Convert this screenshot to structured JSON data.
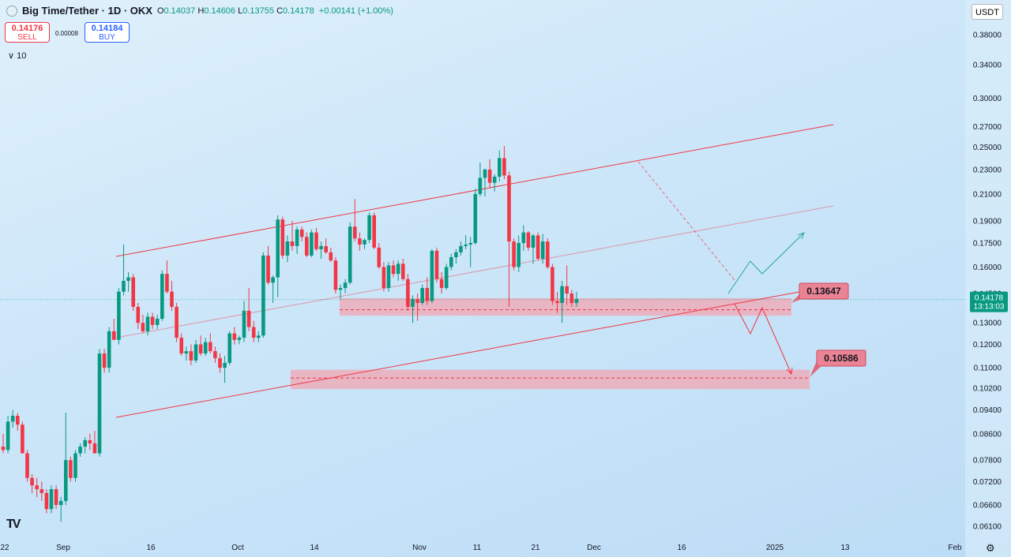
{
  "header": {
    "symbol": "Big Time/Tether · 1D · OKX",
    "o_label": "O",
    "o": "0.14037",
    "h_label": "H",
    "h": "0.14606",
    "l_label": "L",
    "l": "0.13755",
    "c_label": "C",
    "c": "0.14178",
    "change": "+0.00141 (+1.00%)"
  },
  "trade": {
    "sell_price": "0.14176",
    "sell_label": "SELL",
    "spread": "0.00008",
    "buy_price": "0.14184",
    "buy_label": "BUY"
  },
  "indicator_toggle": "∨ 10",
  "currency": "USDT",
  "colors": {
    "up": "#089981",
    "down": "#f23645",
    "channel": "#f23645",
    "zone": "#f2a5b1",
    "arrow_up": "#26a69a"
  },
  "chart_data": {
    "type": "candlestick",
    "y_scale": "log",
    "ylim": [
      0.0587,
      0.4323
    ],
    "y_ticks": [
      "0.38000",
      "0.34000",
      "0.30000",
      "0.27000",
      "0.25000",
      "0.23000",
      "0.21000",
      "0.19000",
      "0.17500",
      "0.16000",
      "0.14500",
      "0.13000",
      "0.12000",
      "0.11000",
      "0.10200",
      "0.09400",
      "0.08600",
      "0.07800",
      "0.07200",
      "0.06600",
      "0.06100"
    ],
    "x_labels": [
      "22",
      "Sep",
      "16",
      "Oct",
      "14",
      "Nov",
      "11",
      "21",
      "Dec",
      "16",
      "2025",
      "13",
      "Feb"
    ],
    "last_price_label": "0.14178",
    "countdown": "13:13:03",
    "levels": [
      {
        "label": "0.13647",
        "value": 0.13647,
        "zone": [
          0.1335,
          0.1425
        ]
      },
      {
        "label": "0.10586",
        "value": 0.10586,
        "zone": [
          0.1016,
          0.1092
        ]
      }
    ],
    "candles": [
      {
        "o": 0.082,
        "h": 0.086,
        "l": 0.08,
        "c": 0.081
      },
      {
        "o": 0.081,
        "h": 0.092,
        "l": 0.08,
        "c": 0.09
      },
      {
        "o": 0.09,
        "h": 0.094,
        "l": 0.088,
        "c": 0.092
      },
      {
        "o": 0.092,
        "h": 0.093,
        "l": 0.087,
        "c": 0.089
      },
      {
        "o": 0.089,
        "h": 0.09,
        "l": 0.08,
        "c": 0.08
      },
      {
        "o": 0.08,
        "h": 0.081,
        "l": 0.072,
        "c": 0.073
      },
      {
        "o": 0.073,
        "h": 0.074,
        "l": 0.069,
        "c": 0.071
      },
      {
        "o": 0.071,
        "h": 0.073,
        "l": 0.068,
        "c": 0.07
      },
      {
        "o": 0.07,
        "h": 0.072,
        "l": 0.067,
        "c": 0.069
      },
      {
        "o": 0.069,
        "h": 0.07,
        "l": 0.064,
        "c": 0.065
      },
      {
        "o": 0.065,
        "h": 0.071,
        "l": 0.064,
        "c": 0.07
      },
      {
        "o": 0.07,
        "h": 0.071,
        "l": 0.065,
        "c": 0.066
      },
      {
        "o": 0.066,
        "h": 0.068,
        "l": 0.062,
        "c": 0.067
      },
      {
        "o": 0.067,
        "h": 0.093,
        "l": 0.066,
        "c": 0.078
      },
      {
        "o": 0.078,
        "h": 0.079,
        "l": 0.072,
        "c": 0.073
      },
      {
        "o": 0.073,
        "h": 0.081,
        "l": 0.072,
        "c": 0.08
      },
      {
        "o": 0.08,
        "h": 0.083,
        "l": 0.079,
        "c": 0.082
      },
      {
        "o": 0.082,
        "h": 0.085,
        "l": 0.08,
        "c": 0.084
      },
      {
        "o": 0.084,
        "h": 0.086,
        "l": 0.081,
        "c": 0.083
      },
      {
        "o": 0.083,
        "h": 0.087,
        "l": 0.08,
        "c": 0.08
      },
      {
        "o": 0.08,
        "h": 0.118,
        "l": 0.079,
        "c": 0.116
      },
      {
        "o": 0.116,
        "h": 0.118,
        "l": 0.108,
        "c": 0.11
      },
      {
        "o": 0.11,
        "h": 0.128,
        "l": 0.108,
        "c": 0.126
      },
      {
        "o": 0.126,
        "h": 0.132,
        "l": 0.122,
        "c": 0.122
      },
      {
        "o": 0.122,
        "h": 0.148,
        "l": 0.12,
        "c": 0.146
      },
      {
        "o": 0.146,
        "h": 0.174,
        "l": 0.144,
        "c": 0.152
      },
      {
        "o": 0.152,
        "h": 0.157,
        "l": 0.146,
        "c": 0.154
      },
      {
        "o": 0.154,
        "h": 0.156,
        "l": 0.136,
        "c": 0.138
      },
      {
        "o": 0.138,
        "h": 0.14,
        "l": 0.127,
        "c": 0.13
      },
      {
        "o": 0.13,
        "h": 0.134,
        "l": 0.125,
        "c": 0.126
      },
      {
        "o": 0.126,
        "h": 0.135,
        "l": 0.124,
        "c": 0.133
      },
      {
        "o": 0.133,
        "h": 0.135,
        "l": 0.127,
        "c": 0.129
      },
      {
        "o": 0.129,
        "h": 0.134,
        "l": 0.127,
        "c": 0.132
      },
      {
        "o": 0.132,
        "h": 0.158,
        "l": 0.131,
        "c": 0.156
      },
      {
        "o": 0.156,
        "h": 0.164,
        "l": 0.145,
        "c": 0.146
      },
      {
        "o": 0.146,
        "h": 0.152,
        "l": 0.136,
        "c": 0.138
      },
      {
        "o": 0.138,
        "h": 0.14,
        "l": 0.121,
        "c": 0.123
      },
      {
        "o": 0.123,
        "h": 0.125,
        "l": 0.115,
        "c": 0.116
      },
      {
        "o": 0.116,
        "h": 0.119,
        "l": 0.113,
        "c": 0.117
      },
      {
        "o": 0.117,
        "h": 0.12,
        "l": 0.111,
        "c": 0.113
      },
      {
        "o": 0.113,
        "h": 0.122,
        "l": 0.112,
        "c": 0.12
      },
      {
        "o": 0.12,
        "h": 0.124,
        "l": 0.115,
        "c": 0.116
      },
      {
        "o": 0.116,
        "h": 0.123,
        "l": 0.115,
        "c": 0.121
      },
      {
        "o": 0.121,
        "h": 0.125,
        "l": 0.116,
        "c": 0.117
      },
      {
        "o": 0.117,
        "h": 0.119,
        "l": 0.112,
        "c": 0.114
      },
      {
        "o": 0.114,
        "h": 0.116,
        "l": 0.108,
        "c": 0.11
      },
      {
        "o": 0.11,
        "h": 0.115,
        "l": 0.104,
        "c": 0.112
      },
      {
        "o": 0.112,
        "h": 0.126,
        "l": 0.111,
        "c": 0.125
      },
      {
        "o": 0.125,
        "h": 0.128,
        "l": 0.12,
        "c": 0.122
      },
      {
        "o": 0.122,
        "h": 0.124,
        "l": 0.12,
        "c": 0.123
      },
      {
        "o": 0.123,
        "h": 0.141,
        "l": 0.121,
        "c": 0.136
      },
      {
        "o": 0.136,
        "h": 0.148,
        "l": 0.126,
        "c": 0.128
      },
      {
        "o": 0.128,
        "h": 0.131,
        "l": 0.121,
        "c": 0.123
      },
      {
        "o": 0.123,
        "h": 0.126,
        "l": 0.121,
        "c": 0.124
      },
      {
        "o": 0.124,
        "h": 0.169,
        "l": 0.123,
        "c": 0.167
      },
      {
        "o": 0.167,
        "h": 0.173,
        "l": 0.15,
        "c": 0.151
      },
      {
        "o": 0.151,
        "h": 0.155,
        "l": 0.14,
        "c": 0.154
      },
      {
        "o": 0.154,
        "h": 0.194,
        "l": 0.143,
        "c": 0.191
      },
      {
        "o": 0.191,
        "h": 0.193,
        "l": 0.165,
        "c": 0.167
      },
      {
        "o": 0.167,
        "h": 0.18,
        "l": 0.163,
        "c": 0.176
      },
      {
        "o": 0.176,
        "h": 0.19,
        "l": 0.17,
        "c": 0.173
      },
      {
        "o": 0.173,
        "h": 0.186,
        "l": 0.168,
        "c": 0.184
      },
      {
        "o": 0.184,
        "h": 0.186,
        "l": 0.176,
        "c": 0.179
      },
      {
        "o": 0.179,
        "h": 0.182,
        "l": 0.166,
        "c": 0.167
      },
      {
        "o": 0.167,
        "h": 0.184,
        "l": 0.166,
        "c": 0.182
      },
      {
        "o": 0.182,
        "h": 0.185,
        "l": 0.17,
        "c": 0.171
      },
      {
        "o": 0.171,
        "h": 0.176,
        "l": 0.165,
        "c": 0.173
      },
      {
        "o": 0.173,
        "h": 0.178,
        "l": 0.168,
        "c": 0.169
      },
      {
        "o": 0.169,
        "h": 0.172,
        "l": 0.163,
        "c": 0.164
      },
      {
        "o": 0.164,
        "h": 0.166,
        "l": 0.145,
        "c": 0.147
      },
      {
        "o": 0.147,
        "h": 0.15,
        "l": 0.142,
        "c": 0.148
      },
      {
        "o": 0.148,
        "h": 0.153,
        "l": 0.145,
        "c": 0.151
      },
      {
        "o": 0.151,
        "h": 0.189,
        "l": 0.15,
        "c": 0.186
      },
      {
        "o": 0.186,
        "h": 0.206,
        "l": 0.176,
        "c": 0.178
      },
      {
        "o": 0.178,
        "h": 0.182,
        "l": 0.17,
        "c": 0.174
      },
      {
        "o": 0.174,
        "h": 0.178,
        "l": 0.171,
        "c": 0.177
      },
      {
        "o": 0.177,
        "h": 0.196,
        "l": 0.175,
        "c": 0.194
      },
      {
        "o": 0.194,
        "h": 0.196,
        "l": 0.171,
        "c": 0.172
      },
      {
        "o": 0.172,
        "h": 0.175,
        "l": 0.159,
        "c": 0.16
      },
      {
        "o": 0.16,
        "h": 0.163,
        "l": 0.146,
        "c": 0.148
      },
      {
        "o": 0.148,
        "h": 0.163,
        "l": 0.146,
        "c": 0.161
      },
      {
        "o": 0.161,
        "h": 0.164,
        "l": 0.154,
        "c": 0.156
      },
      {
        "o": 0.156,
        "h": 0.164,
        "l": 0.152,
        "c": 0.162
      },
      {
        "o": 0.162,
        "h": 0.165,
        "l": 0.152,
        "c": 0.153
      },
      {
        "o": 0.153,
        "h": 0.156,
        "l": 0.136,
        "c": 0.138
      },
      {
        "o": 0.138,
        "h": 0.144,
        "l": 0.13,
        "c": 0.142
      },
      {
        "o": 0.142,
        "h": 0.145,
        "l": 0.131,
        "c": 0.14
      },
      {
        "o": 0.14,
        "h": 0.15,
        "l": 0.139,
        "c": 0.148
      },
      {
        "o": 0.148,
        "h": 0.154,
        "l": 0.139,
        "c": 0.141
      },
      {
        "o": 0.141,
        "h": 0.171,
        "l": 0.14,
        "c": 0.17
      },
      {
        "o": 0.17,
        "h": 0.172,
        "l": 0.151,
        "c": 0.153
      },
      {
        "o": 0.153,
        "h": 0.157,
        "l": 0.145,
        "c": 0.148
      },
      {
        "o": 0.148,
        "h": 0.162,
        "l": 0.147,
        "c": 0.16
      },
      {
        "o": 0.16,
        "h": 0.168,
        "l": 0.158,
        "c": 0.166
      },
      {
        "o": 0.166,
        "h": 0.171,
        "l": 0.162,
        "c": 0.169
      },
      {
        "o": 0.169,
        "h": 0.176,
        "l": 0.167,
        "c": 0.173
      },
      {
        "o": 0.173,
        "h": 0.18,
        "l": 0.171,
        "c": 0.174
      },
      {
        "o": 0.174,
        "h": 0.179,
        "l": 0.16,
        "c": 0.175
      },
      {
        "o": 0.175,
        "h": 0.214,
        "l": 0.174,
        "c": 0.21
      },
      {
        "o": 0.21,
        "h": 0.236,
        "l": 0.208,
        "c": 0.223
      },
      {
        "o": 0.223,
        "h": 0.231,
        "l": 0.208,
        "c": 0.23
      },
      {
        "o": 0.23,
        "h": 0.239,
        "l": 0.215,
        "c": 0.219
      },
      {
        "o": 0.219,
        "h": 0.226,
        "l": 0.212,
        "c": 0.224
      },
      {
        "o": 0.224,
        "h": 0.247,
        "l": 0.22,
        "c": 0.24
      },
      {
        "o": 0.24,
        "h": 0.251,
        "l": 0.222,
        "c": 0.225
      },
      {
        "o": 0.225,
        "h": 0.228,
        "l": 0.138,
        "c": 0.176
      },
      {
        "o": 0.176,
        "h": 0.178,
        "l": 0.158,
        "c": 0.16
      },
      {
        "o": 0.16,
        "h": 0.18,
        "l": 0.157,
        "c": 0.175
      },
      {
        "o": 0.175,
        "h": 0.187,
        "l": 0.17,
        "c": 0.182
      },
      {
        "o": 0.182,
        "h": 0.183,
        "l": 0.17,
        "c": 0.172
      },
      {
        "o": 0.172,
        "h": 0.181,
        "l": 0.162,
        "c": 0.18
      },
      {
        "o": 0.18,
        "h": 0.182,
        "l": 0.164,
        "c": 0.165
      },
      {
        "o": 0.165,
        "h": 0.181,
        "l": 0.162,
        "c": 0.176
      },
      {
        "o": 0.176,
        "h": 0.178,
        "l": 0.159,
        "c": 0.16
      },
      {
        "o": 0.16,
        "h": 0.162,
        "l": 0.139,
        "c": 0.141
      },
      {
        "o": 0.141,
        "h": 0.146,
        "l": 0.135,
        "c": 0.14
      },
      {
        "o": 0.14,
        "h": 0.152,
        "l": 0.13,
        "c": 0.149
      },
      {
        "o": 0.149,
        "h": 0.161,
        "l": 0.139,
        "c": 0.145
      },
      {
        "o": 0.145,
        "h": 0.147,
        "l": 0.138,
        "c": 0.14
      },
      {
        "o": 0.14,
        "h": 0.146,
        "l": 0.138,
        "c": 0.142
      }
    ]
  }
}
